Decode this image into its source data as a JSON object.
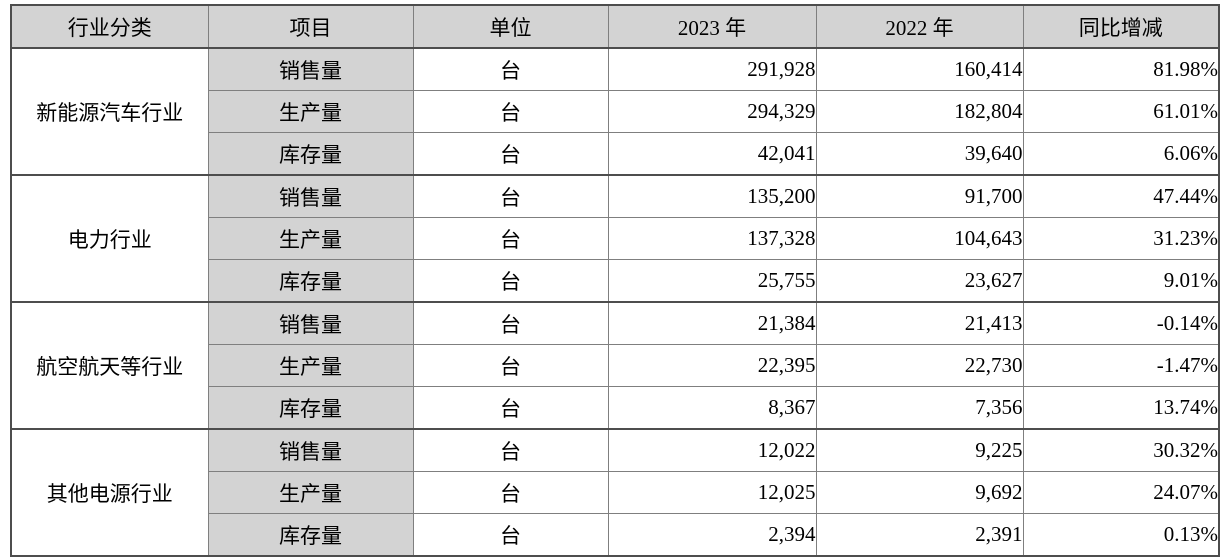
{
  "table": {
    "headers": [
      "行业分类",
      "项目",
      "单位",
      "2023 年",
      "2022 年",
      "同比增减"
    ],
    "groups": [
      {
        "industry": "新能源汽车行业",
        "rows": [
          {
            "item": "销售量",
            "unit": "台",
            "y2023": "291,928",
            "y2022": "160,414",
            "yoy": "81.98%"
          },
          {
            "item": "生产量",
            "unit": "台",
            "y2023": "294,329",
            "y2022": "182,804",
            "yoy": "61.01%"
          },
          {
            "item": "库存量",
            "unit": "台",
            "y2023": "42,041",
            "y2022": "39,640",
            "yoy": "6.06%"
          }
        ]
      },
      {
        "industry": "电力行业",
        "rows": [
          {
            "item": "销售量",
            "unit": "台",
            "y2023": "135,200",
            "y2022": "91,700",
            "yoy": "47.44%"
          },
          {
            "item": "生产量",
            "unit": "台",
            "y2023": "137,328",
            "y2022": "104,643",
            "yoy": "31.23%"
          },
          {
            "item": "库存量",
            "unit": "台",
            "y2023": "25,755",
            "y2022": "23,627",
            "yoy": "9.01%"
          }
        ]
      },
      {
        "industry": "航空航天等行业",
        "rows": [
          {
            "item": "销售量",
            "unit": "台",
            "y2023": "21,384",
            "y2022": "21,413",
            "yoy": "-0.14%"
          },
          {
            "item": "生产量",
            "unit": "台",
            "y2023": "22,395",
            "y2022": "22,730",
            "yoy": "-1.47%"
          },
          {
            "item": "库存量",
            "unit": "台",
            "y2023": "8,367",
            "y2022": "7,356",
            "yoy": "13.74%"
          }
        ]
      },
      {
        "industry": "其他电源行业",
        "rows": [
          {
            "item": "销售量",
            "unit": "台",
            "y2023": "12,022",
            "y2022": "9,225",
            "yoy": "30.32%"
          },
          {
            "item": "生产量",
            "unit": "台",
            "y2023": "12,025",
            "y2022": "9,692",
            "yoy": "24.07%"
          },
          {
            "item": "库存量",
            "unit": "台",
            "y2023": "2,394",
            "y2022": "2,391",
            "yoy": "0.13%"
          }
        ]
      }
    ],
    "colors": {
      "header_bg": "#d3d3d3",
      "item_column_bg": "#d3d3d3",
      "inner_border": "#7f7f7f",
      "outer_border": "#4d4d4d"
    }
  }
}
